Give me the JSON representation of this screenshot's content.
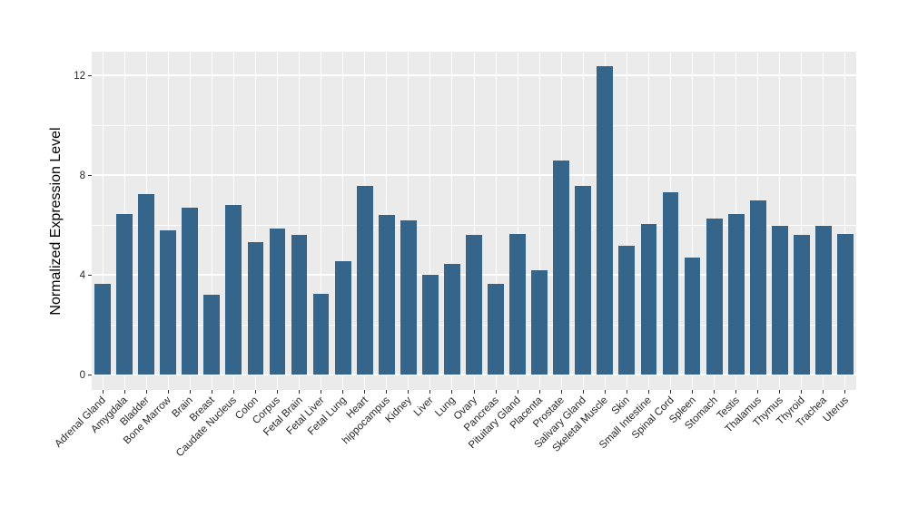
{
  "figure": {
    "background": "#ffffff",
    "panel_background": "#EBEBEB",
    "grid_color": "#FFFFFF",
    "bar_color": "#36658B",
    "axis_text_color": "#262626",
    "tick_mark_color": "#333333"
  },
  "chart_data": {
    "type": "bar",
    "title": "",
    "xlabel": "",
    "ylabel": "Normalized Expression Level",
    "categories": [
      "Adrenal Gland",
      "Amygdala",
      "Bladder",
      "Bone Marrow",
      "Brain",
      "Breast",
      "Caudate Nucleus",
      "Colon",
      "Corpus",
      "Fetal Brain",
      "Fetal Liver",
      "Fetal Lung",
      "Heart",
      "hippocampus",
      "Kidney",
      "Liver",
      "Lung",
      "Ovary",
      "Pancreas",
      "Pituitary Gland",
      "Placenta",
      "Prostate",
      "Salivary Gland",
      "Skeletal Muscle",
      "Skin",
      "Small Intestine",
      "Spinal Cord",
      "Spleen",
      "Stomach",
      "Testis",
      "Thalamus",
      "Thymus",
      "Thyroid",
      "Trachea",
      "Uterus"
    ],
    "values": [
      3.65,
      6.45,
      7.25,
      5.8,
      6.7,
      3.2,
      6.8,
      5.3,
      5.85,
      5.6,
      3.25,
      4.55,
      7.55,
      6.4,
      6.2,
      4.0,
      4.45,
      5.6,
      3.65,
      5.65,
      4.2,
      8.6,
      7.55,
      12.35,
      5.15,
      6.05,
      7.3,
      4.7,
      6.25,
      6.45,
      7.0,
      5.95,
      5.6,
      5.95,
      5.65
    ],
    "yticks": [
      0,
      4,
      8,
      12
    ],
    "yticks_minor": [
      2,
      6,
      10
    ],
    "ylim": [
      -0.62,
      12.95
    ],
    "grid": "on",
    "legend": "none",
    "x_label_rotation_deg": 45
  }
}
